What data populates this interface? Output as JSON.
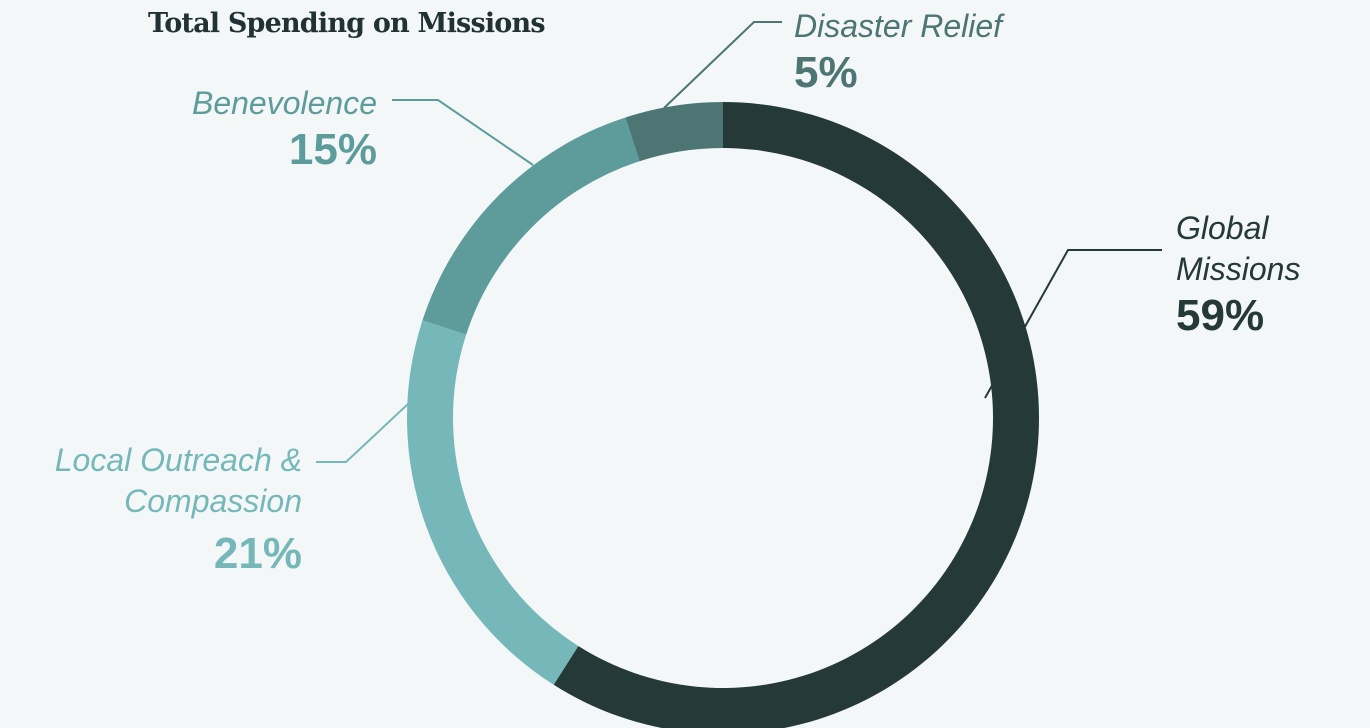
{
  "chart_data": {
    "type": "pie",
    "title": "Total Spending on Missions",
    "categories": [
      "Global Missions",
      "Local Outreach & Compassion",
      "Benevolence",
      "Disaster Relief"
    ],
    "values": [
      59,
      21,
      15,
      5
    ],
    "value_labels": [
      "59%",
      "21%",
      "15%",
      "5%"
    ],
    "colors": [
      "#253938",
      "#76b8b9",
      "#5e9c9c",
      "#4c7573"
    ],
    "donut": true,
    "start": "12 o'clock, clockwise"
  }
}
